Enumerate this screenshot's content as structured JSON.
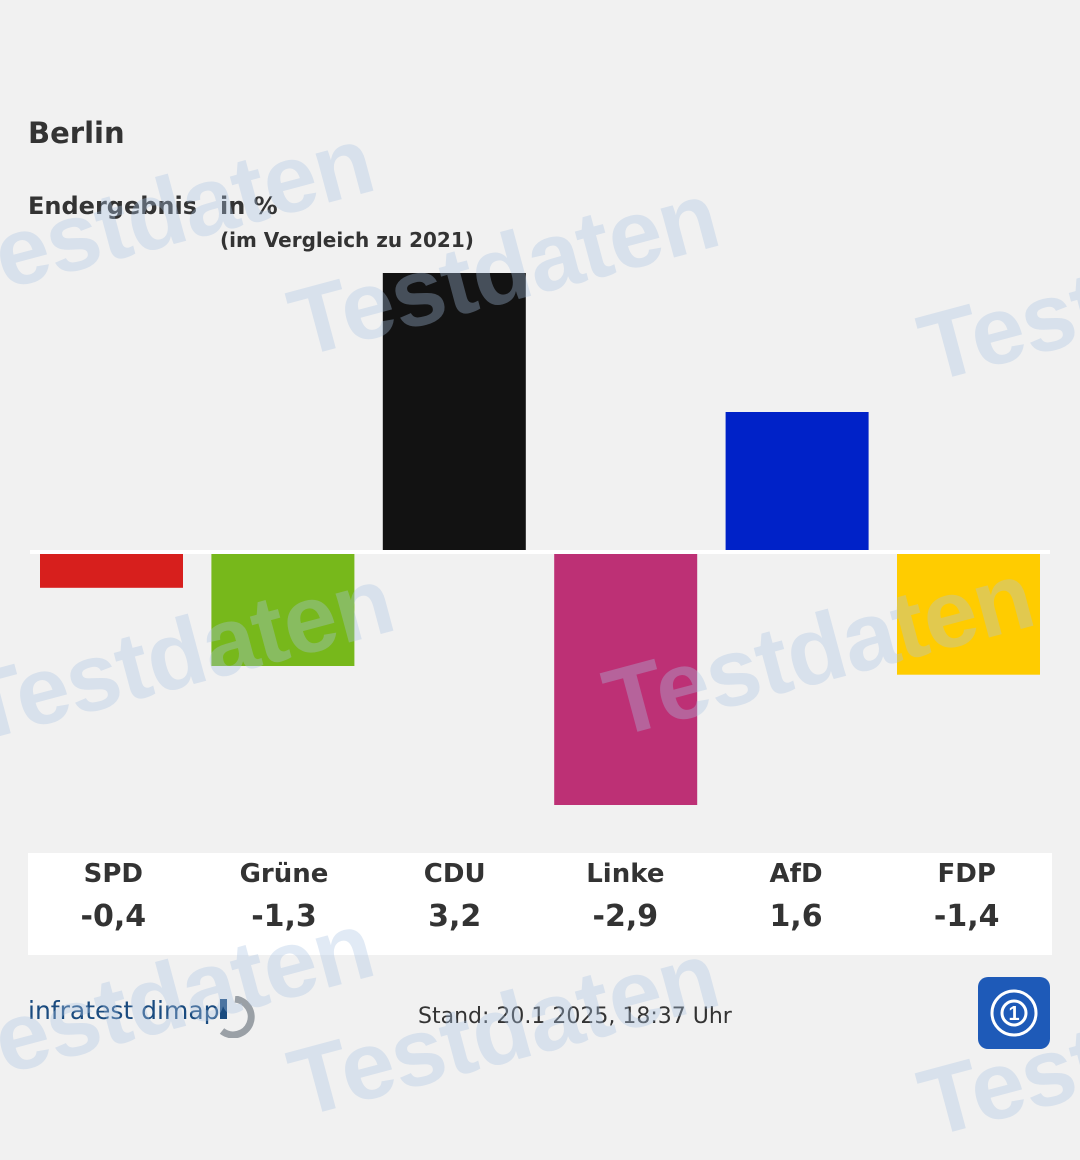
{
  "title": "Berlin",
  "subtitle_left": "Endergebnis",
  "subtitle_unit": "in %",
  "subtitle_compare": "(im Vergleich zu 2021)",
  "watermark": "Testdaten",
  "footer": {
    "source": "infratest dimap",
    "stand": "Stand: 20.1 2025, 18:37 Uhr"
  },
  "chart_data": {
    "type": "bar",
    "title": "Berlin",
    "categories": [
      "SPD",
      "Grüne",
      "CDU",
      "Linke",
      "AfD",
      "FDP"
    ],
    "values": [
      -0.4,
      -1.3,
      3.2,
      -2.9,
      1.6,
      -1.4
    ],
    "labels": [
      "-0,4",
      "-1,3",
      "3,2",
      "-2,9",
      "1,6",
      "-1,4"
    ],
    "colors": [
      "#d71f1d",
      "#77b81b",
      "#121212",
      "#bd3075",
      "#0022c8",
      "#ffcc00"
    ],
    "ylim": [
      -2.9,
      3.2
    ]
  }
}
